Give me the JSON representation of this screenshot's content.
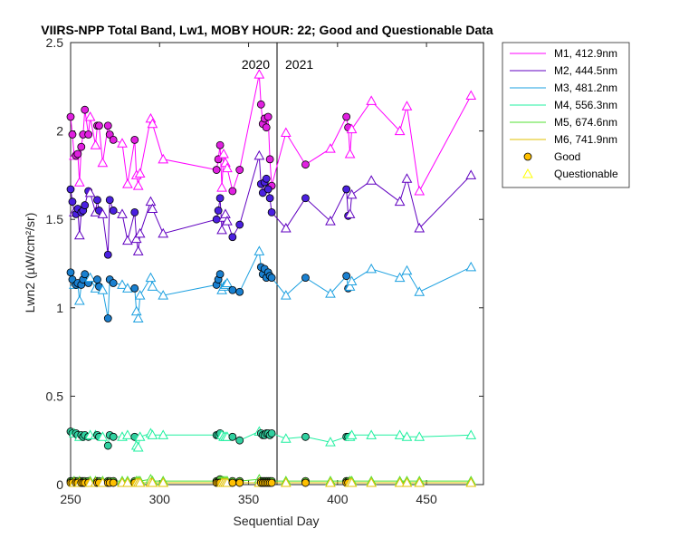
{
  "chart_data": {
    "type": "line",
    "title": "VIIRS-NPP Total Band, Lw1, MOBY HOUR: 22;  Good and Questionable Data",
    "xlabel": "Sequential Day",
    "ylabel": "Lwn2 (µW/cm²/sr)",
    "xlim": [
      250,
      482
    ],
    "ylim": [
      0,
      2.5
    ],
    "xticks": [
      250,
      300,
      350,
      400,
      450
    ],
    "yticks": [
      0,
      0.5,
      1,
      1.5,
      2,
      2.5
    ],
    "xtick_labels": [
      "250",
      "300",
      "350",
      "400",
      "450"
    ],
    "ytick_labels": [
      "0",
      "0.5",
      "1",
      "1.5",
      "2",
      "2.5"
    ],
    "grid": false,
    "legend_position": "outside-top-right",
    "divider": {
      "x": 366,
      "left_label": "2020",
      "right_label": "2021"
    },
    "markers": {
      "good": "Good",
      "questionable": "Questionable",
      "good_color": "#ffc000",
      "questionable_color": "#ffff00"
    },
    "x": [
      250,
      251,
      252,
      253,
      254,
      255,
      256,
      257,
      258,
      260,
      261,
      264,
      265,
      266,
      268,
      271,
      272,
      274,
      279,
      282,
      286,
      287,
      288,
      289,
      295,
      296,
      302,
      332,
      333,
      334,
      335,
      336,
      337,
      338,
      341,
      345,
      356,
      357,
      358,
      359,
      360,
      361,
      362,
      363,
      371,
      382,
      396,
      405,
      406,
      407,
      408,
      419,
      435,
      439,
      446,
      475
    ],
    "good_mask": [
      true,
      true,
      false,
      true,
      true,
      false,
      true,
      true,
      true,
      true,
      false,
      false,
      true,
      true,
      false,
      true,
      true,
      true,
      false,
      false,
      true,
      false,
      false,
      false,
      false,
      false,
      false,
      true,
      true,
      true,
      false,
      false,
      false,
      false,
      true,
      true,
      false,
      true,
      true,
      true,
      true,
      true,
      true,
      true,
      false,
      true,
      false,
      true,
      true,
      false,
      false,
      false,
      false,
      false,
      false,
      false
    ],
    "series": [
      {
        "name": "M1, 412.9nm",
        "color": "#ff00ff",
        "marker_color": "#e020e0",
        "values": [
          2.08,
          1.98,
          1.86,
          1.86,
          1.87,
          1.71,
          1.91,
          1.98,
          2.12,
          1.98,
          2.08,
          1.92,
          2.03,
          2.03,
          1.82,
          2.03,
          1.98,
          1.95,
          1.93,
          1.7,
          1.95,
          1.75,
          1.69,
          1.76,
          2.07,
          2.04,
          1.84,
          1.78,
          1.84,
          1.92,
          1.68,
          1.87,
          1.82,
          1.79,
          1.66,
          1.78,
          2.32,
          2.15,
          2.04,
          2.07,
          2.02,
          2.08,
          1.84,
          1.69,
          1.99,
          1.81,
          1.9,
          2.08,
          2.02,
          1.87,
          2.01,
          2.17,
          2.0,
          2.14,
          1.66,
          2.2
        ]
      },
      {
        "name": "M2, 444.5nm",
        "color": "#6000c0",
        "marker_color": "#4a20e0",
        "values": [
          1.67,
          1.6,
          1.54,
          1.53,
          1.56,
          1.41,
          1.54,
          1.55,
          1.58,
          1.66,
          1.65,
          1.54,
          1.61,
          1.55,
          1.53,
          1.3,
          1.61,
          1.55,
          1.53,
          1.38,
          1.54,
          1.39,
          1.32,
          1.42,
          1.6,
          1.56,
          1.42,
          1.5,
          1.55,
          1.62,
          1.44,
          1.51,
          1.53,
          1.49,
          1.4,
          1.47,
          1.86,
          1.7,
          1.65,
          1.71,
          1.73,
          1.67,
          1.62,
          1.54,
          1.45,
          1.62,
          1.49,
          1.67,
          1.52,
          1.53,
          1.64,
          1.72,
          1.6,
          1.73,
          1.45,
          1.75
        ]
      },
      {
        "name": "M3, 481.2nm",
        "color": "#1ca0e0",
        "marker_color": "#1a80d0",
        "values": [
          1.2,
          1.16,
          1.13,
          1.13,
          1.14,
          1.04,
          1.13,
          1.16,
          1.19,
          1.14,
          1.17,
          1.11,
          1.16,
          1.12,
          1.1,
          0.94,
          1.16,
          1.14,
          1.13,
          1.11,
          1.11,
          0.98,
          0.94,
          1.07,
          1.17,
          1.12,
          1.07,
          1.13,
          1.16,
          1.19,
          1.1,
          1.12,
          1.13,
          1.14,
          1.1,
          1.09,
          1.32,
          1.23,
          1.19,
          1.22,
          1.17,
          1.2,
          1.18,
          1.17,
          1.07,
          1.17,
          1.08,
          1.18,
          1.11,
          1.12,
          1.15,
          1.22,
          1.17,
          1.21,
          1.09,
          1.23
        ]
      },
      {
        "name": "M4, 556.3nm",
        "color": "#20f0a0",
        "marker_color": "#30d0a0",
        "values": [
          0.3,
          0.29,
          0.29,
          0.29,
          0.28,
          0.27,
          0.28,
          0.27,
          0.28,
          0.27,
          0.28,
          0.28,
          0.28,
          0.27,
          0.27,
          0.22,
          0.28,
          0.27,
          0.27,
          0.28,
          0.27,
          0.22,
          0.21,
          0.27,
          0.29,
          0.28,
          0.28,
          0.28,
          0.28,
          0.29,
          0.28,
          0.27,
          0.27,
          0.27,
          0.27,
          0.25,
          0.3,
          0.29,
          0.28,
          0.28,
          0.29,
          0.29,
          0.28,
          0.29,
          0.26,
          0.27,
          0.24,
          0.27,
          0.27,
          0.27,
          0.28,
          0.28,
          0.28,
          0.27,
          0.27,
          0.28
        ]
      },
      {
        "name": "M5, 674.6nm",
        "color": "#50e030",
        "marker_color": "#60d040",
        "values": [
          0.02,
          0.02,
          0.02,
          0.02,
          0.02,
          0.02,
          0.02,
          0.02,
          0.02,
          0.02,
          0.02,
          0.02,
          0.02,
          0.02,
          0.02,
          0.02,
          0.02,
          0.02,
          0.02,
          0.02,
          0.02,
          0.02,
          0.02,
          0.02,
          0.03,
          0.02,
          0.02,
          0.02,
          0.02,
          0.03,
          0.02,
          0.02,
          0.02,
          0.02,
          0.02,
          0.02,
          0.03,
          0.02,
          0.02,
          0.02,
          0.02,
          0.02,
          0.02,
          0.02,
          0.02,
          0.02,
          0.02,
          0.02,
          0.02,
          0.02,
          0.02,
          0.02,
          0.02,
          0.02,
          0.02,
          0.02
        ]
      },
      {
        "name": "M6, 741.9nm",
        "color": "#e0c000",
        "marker_color": "#ffc000",
        "values": [
          0.01,
          0.01,
          0.01,
          0.01,
          0.01,
          0.01,
          0.01,
          0.01,
          0.01,
          0.01,
          0.01,
          0.01,
          0.01,
          0.01,
          0.01,
          0.01,
          0.01,
          0.01,
          0.01,
          0.01,
          0.01,
          0.01,
          0.01,
          0.01,
          0.01,
          0.01,
          0.01,
          0.01,
          0.01,
          0.01,
          0.01,
          0.01,
          0.01,
          0.01,
          0.01,
          0.01,
          0.01,
          0.01,
          0.01,
          0.01,
          0.01,
          0.01,
          0.01,
          0.01,
          0.01,
          0.01,
          0.01,
          0.01,
          0.01,
          0.01,
          0.01,
          0.01,
          0.01,
          0.01,
          0.01,
          0.01
        ]
      }
    ]
  }
}
